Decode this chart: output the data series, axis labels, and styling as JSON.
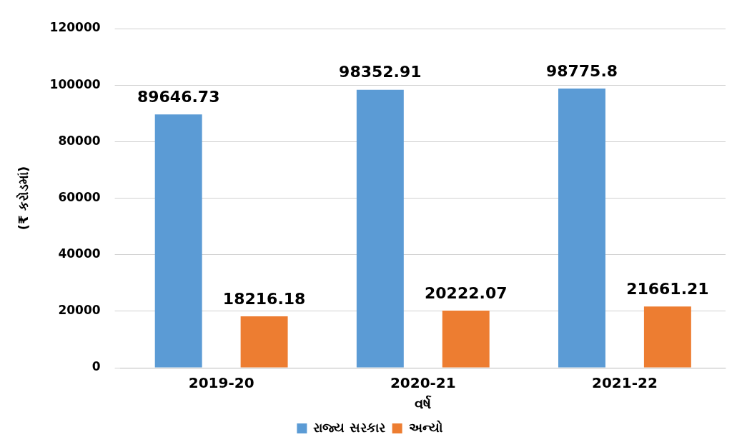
{
  "chart_data": {
    "type": "bar",
    "xlabel": "વર્ષ",
    "ylabel": "(₹ કરોડમાં)",
    "categories": [
      "2019-20",
      "2020-21",
      "2021-22"
    ],
    "series": [
      {
        "name": "રાજ્ય સરકાર",
        "color": "#5b9bd5",
        "values": [
          89646.73,
          98352.91,
          98775.8
        ]
      },
      {
        "name": "અન્યો",
        "color": "#ed7d31",
        "values": [
          18216.18,
          20222.07,
          21661.21
        ]
      }
    ],
    "ylim": [
      0,
      120000
    ],
    "yticks": [
      0,
      20000,
      40000,
      60000,
      80000,
      100000,
      120000
    ],
    "grid": "y",
    "legend": "bottom",
    "data_labels": true
  }
}
